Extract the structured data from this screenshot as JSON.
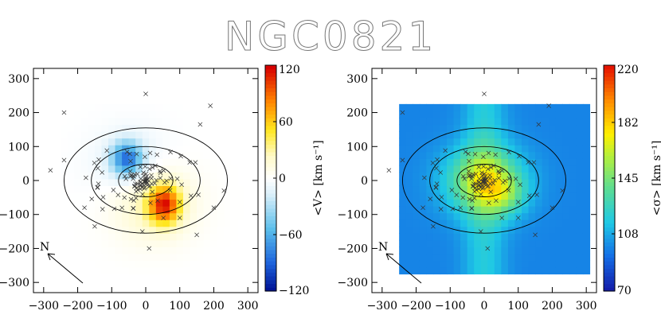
{
  "figure": {
    "title": "NGC0821"
  },
  "chart_data": [
    {
      "type": "heatmap",
      "name": "velocity-map",
      "xlim": [
        -330,
        330
      ],
      "ylim": [
        -330,
        330
      ],
      "xticks": [
        -300,
        -200,
        -100,
        0,
        100,
        200,
        300
      ],
      "yticks": [
        -300,
        -200,
        -100,
        0,
        100,
        200,
        300
      ],
      "field_x_range": [
        -250,
        310
      ],
      "field_y_range": [
        -275,
        225
      ],
      "colorbar": {
        "label": "<V> [km s⁻¹]",
        "ticks": [
          -120,
          -60,
          0,
          60,
          120
        ],
        "range": [
          -120,
          120
        ],
        "colormap": "blue-white-red"
      },
      "ellipses_semi_axes": [
        [
          240,
          155
        ],
        [
          160,
          100
        ],
        [
          80,
          48
        ]
      ],
      "compass_label": "N",
      "grid": false
    },
    {
      "type": "heatmap",
      "name": "dispersion-map",
      "xlim": [
        -330,
        330
      ],
      "ylim": [
        -330,
        330
      ],
      "xticks": [
        -300,
        -200,
        -100,
        0,
        100,
        200,
        300
      ],
      "yticks": [
        -300,
        -200,
        -100,
        0,
        100,
        200,
        300
      ],
      "field_x_range": [
        -250,
        310
      ],
      "field_y_range": [
        -275,
        225
      ],
      "colorbar": {
        "label": "<σ> [km s⁻¹]",
        "ticks": [
          70,
          108,
          145,
          182,
          220
        ],
        "range": [
          70,
          220
        ],
        "colormap": "rainbow"
      },
      "ellipses_semi_axes": [
        [
          240,
          155
        ],
        [
          160,
          100
        ],
        [
          80,
          48
        ]
      ],
      "compass_label": "N",
      "grid": false
    }
  ]
}
